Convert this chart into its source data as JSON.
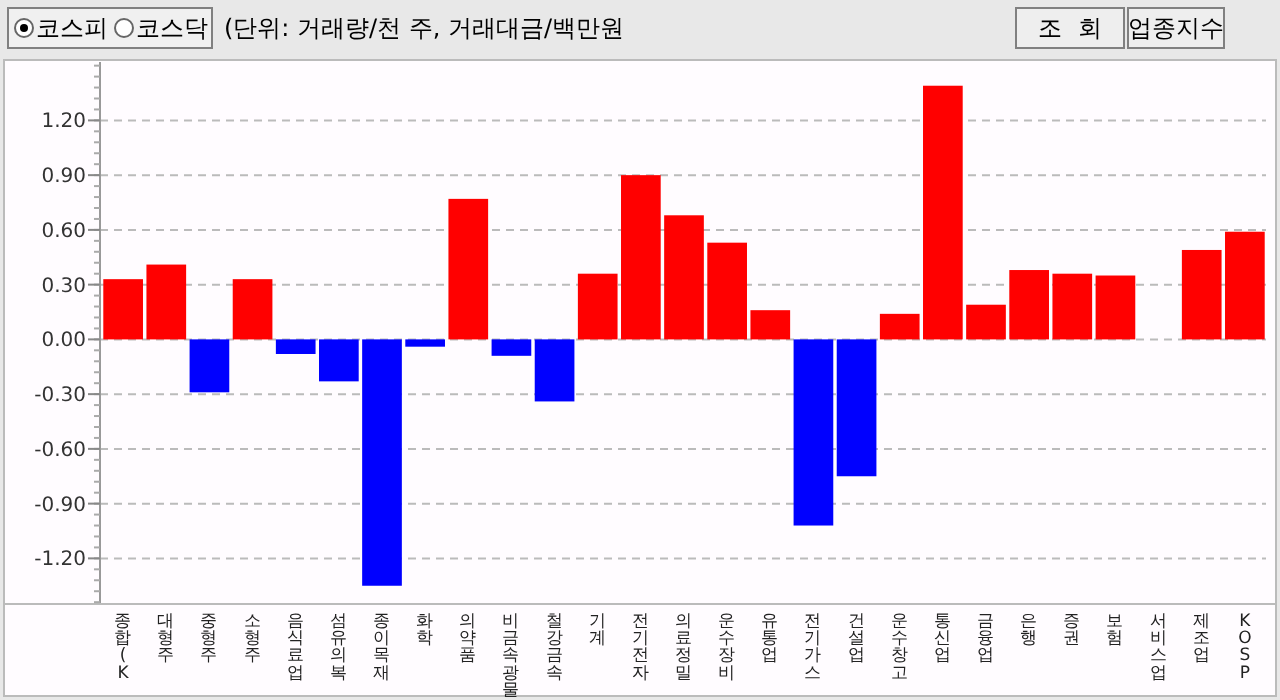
{
  "chart_data": {
    "type": "bar",
    "categories": [
      "종합(K",
      "대형주",
      "중형주",
      "소형주",
      "음식료업",
      "섬유의복",
      "종이목재",
      "화학",
      "의약품",
      "비금속광물",
      "철강금속",
      "기계",
      "전기전자",
      "의료정밀",
      "운수장비",
      "유통업",
      "전기가스",
      "건설업",
      "운수창고",
      "통신업",
      "금융업",
      "은행",
      "증권",
      "보험",
      "서비스업",
      "제조업",
      "KOSP"
    ],
    "values": [
      0.33,
      0.41,
      -0.29,
      0.33,
      -0.08,
      -0.23,
      -1.35,
      -0.04,
      0.77,
      -0.09,
      -0.34,
      0.36,
      0.9,
      0.68,
      0.53,
      0.16,
      -1.02,
      -0.75,
      0.14,
      1.39,
      0.19,
      0.38,
      0.36,
      0.35,
      0,
      0.49,
      0.59
    ],
    "colors": [
      "#ff0000",
      "#ff0000",
      "#0000ff",
      "#ff0000",
      "#0000ff",
      "#0000ff",
      "#0000ff",
      "#0000ff",
      "#ff0000",
      "#0000ff",
      "#0000ff",
      "#ff0000",
      "#ff0000",
      "#ff0000",
      "#ff0000",
      "#ff0000",
      "#0000ff",
      "#0000ff",
      "#ff0000",
      "#ff0000",
      "#ff0000",
      "#ff0000",
      "#ff0000",
      "#ff0000",
      "#ff0000",
      "#ff0000",
      "#ff0000"
    ],
    "ylim": [
      -1.45,
      1.52
    ],
    "yticks": [
      {
        "value": -1.2,
        "label": "-1.20"
      },
      {
        "value": -0.9,
        "label": "-0.90"
      },
      {
        "value": -0.6,
        "label": "-0.60"
      },
      {
        "value": -0.3,
        "label": "-0.30"
      },
      {
        "value": 0,
        "label": "0.00"
      },
      {
        "value": 0.3,
        "label": "0.30"
      },
      {
        "value": 0.6,
        "label": "0.60"
      },
      {
        "value": 0.9,
        "label": "0.90"
      },
      {
        "value": 1.2,
        "label": "1.20"
      }
    ],
    "grid": "y",
    "annotations": [
      "코스피",
      "코스닥",
      "(단위: 거래량/천 주, 거래대금/백만원",
      "조  회",
      "업종지수"
    ]
  }
}
